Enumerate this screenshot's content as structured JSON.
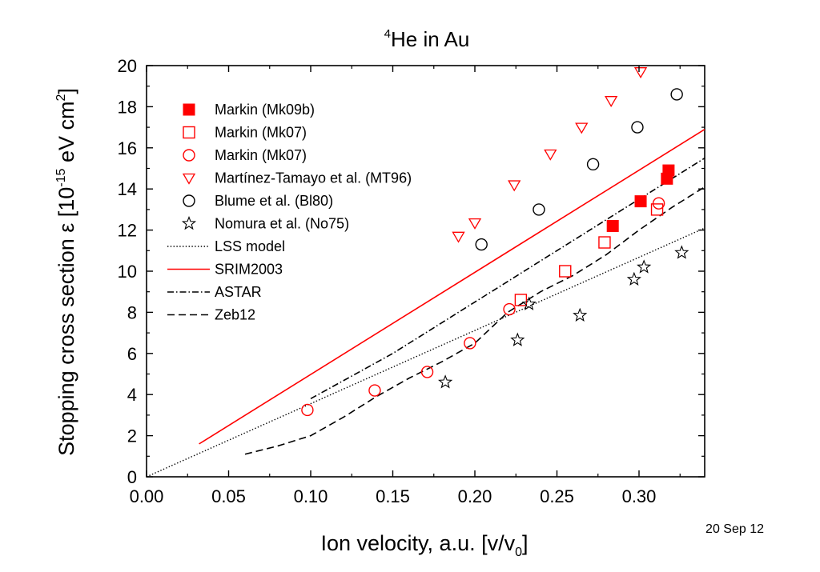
{
  "chart_data": {
    "type": "scatter",
    "title": {
      "sup": "4",
      "text": "He in Au"
    },
    "xlabel": {
      "text": "Ion velocity, a.u. [v/v",
      "sub": "0",
      "end": "]"
    },
    "ylabel": {
      "pre": "Stopping cross section ε [10",
      "sup1": "-15",
      "mid": " eV cm",
      "sup2": "2",
      "end": "]"
    },
    "xlim": [
      0,
      0.34
    ],
    "ylim": [
      0,
      20
    ],
    "xticks": [
      "0.00",
      "0.05",
      "0.10",
      "0.15",
      "0.20",
      "0.25",
      "0.30"
    ],
    "xtick_values": [
      0,
      0.05,
      0.1,
      0.15,
      0.2,
      0.25,
      0.3
    ],
    "yticks": [
      "0",
      "2",
      "4",
      "6",
      "8",
      "10",
      "12",
      "14",
      "16",
      "18",
      "20"
    ],
    "ytick_values": [
      0,
      2,
      4,
      6,
      8,
      10,
      12,
      14,
      16,
      18,
      20
    ],
    "legend_position": "top-left",
    "date_stamp": "20 Sep 12",
    "series": [
      {
        "name": "Markin (Mk09b)",
        "marker": "square-filled",
        "color": "#ff0000",
        "x": [
          0.284,
          0.301,
          0.317,
          0.318
        ],
        "y": [
          12.2,
          13.4,
          14.5,
          14.9
        ]
      },
      {
        "name": "Markin (Mk07)",
        "marker": "square-open",
        "color": "#ff0000",
        "x": [
          0.228,
          0.255,
          0.279,
          0.311
        ],
        "y": [
          8.6,
          10.0,
          11.4,
          13.0
        ]
      },
      {
        "name": "Markin (Mk07)",
        "marker": "circle-open",
        "color": "#ff0000",
        "x": [
          0.098,
          0.139,
          0.171,
          0.197,
          0.221,
          0.312
        ],
        "y": [
          3.25,
          4.2,
          5.1,
          6.5,
          8.15,
          13.3
        ]
      },
      {
        "name": "Martínez-Tamayo et al. (MT96)",
        "marker": "triangle-down-open",
        "color": "#ff0000",
        "x": [
          0.19,
          0.2,
          0.224,
          0.246,
          0.265,
          0.283,
          0.301
        ],
        "y": [
          11.7,
          12.35,
          14.2,
          15.7,
          17.0,
          18.3,
          19.7
        ]
      },
      {
        "name": "Blume et al. (Bl80)",
        "marker": "circle-open",
        "color": "#000000",
        "x": [
          0.204,
          0.239,
          0.272,
          0.299,
          0.323
        ],
        "y": [
          11.3,
          13.0,
          15.2,
          17.0,
          18.6
        ]
      },
      {
        "name": "Nomura et al. (No75)",
        "marker": "star-open",
        "color": "#000000",
        "x": [
          0.182,
          0.226,
          0.233,
          0.264,
          0.297,
          0.303,
          0.326
        ],
        "y": [
          4.6,
          6.65,
          8.4,
          7.85,
          9.6,
          10.2,
          10.9
        ]
      },
      {
        "name": "LSS model",
        "line": "dotted",
        "color": "#000000",
        "x": [
          0.0,
          0.34
        ],
        "y": [
          0.0,
          12.1
        ]
      },
      {
        "name": "SRIM2003",
        "line": "solid",
        "color": "#ff0000",
        "x": [
          0.032,
          0.34
        ],
        "y": [
          1.6,
          16.9
        ]
      },
      {
        "name": "ASTAR",
        "line": "dashdot",
        "color": "#000000",
        "x": [
          0.1,
          0.15,
          0.2,
          0.25,
          0.3,
          0.34
        ],
        "y": [
          3.8,
          6.0,
          8.5,
          11.0,
          13.5,
          15.5
        ]
      },
      {
        "name": "Zeb12",
        "line": "dashed",
        "color": "#000000",
        "x": [
          0.06,
          0.08,
          0.1,
          0.12,
          0.14,
          0.16,
          0.18,
          0.2,
          0.22,
          0.24,
          0.26,
          0.28,
          0.3,
          0.32,
          0.34
        ],
        "y": [
          1.1,
          1.5,
          2.0,
          2.9,
          3.9,
          4.8,
          5.6,
          6.5,
          8.0,
          9.0,
          9.8,
          10.8,
          12.0,
          13.1,
          14.1
        ]
      }
    ]
  }
}
